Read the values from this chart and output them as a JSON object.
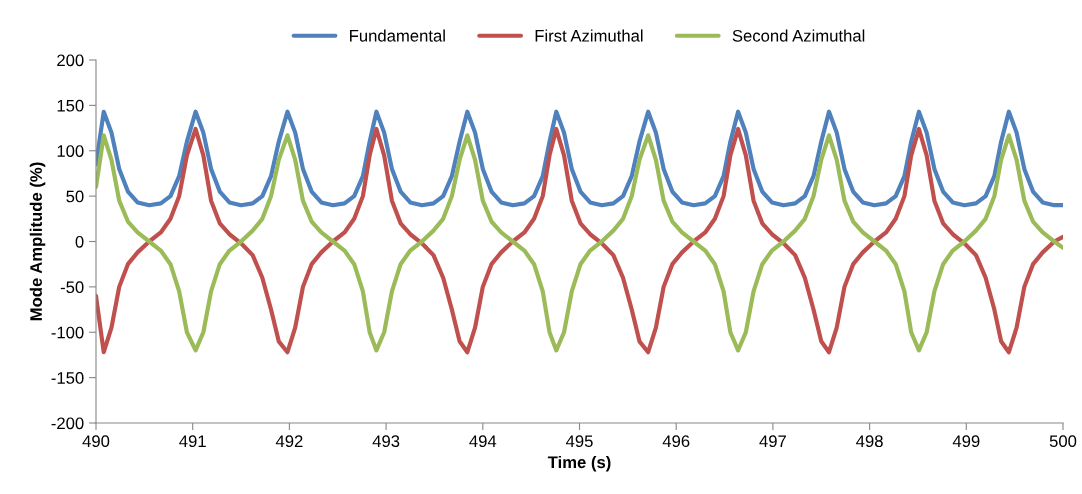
{
  "chart_data": {
    "type": "line",
    "xlabel": "Time (s)",
    "ylabel": "Mode Amplitude (%)",
    "x": [
      490.0,
      490.08,
      490.16,
      490.24,
      490.33,
      490.43,
      490.55,
      490.67,
      490.77,
      490.86,
      490.94,
      491.03,
      491.11,
      491.19,
      491.28,
      491.38,
      491.5,
      491.62,
      491.72,
      491.81,
      491.89,
      491.98,
      492.06,
      492.14,
      492.23,
      492.33,
      492.45,
      492.57,
      492.67,
      492.76,
      492.83,
      492.9,
      492.98,
      493.06,
      493.15,
      493.25,
      493.37,
      493.49,
      493.59,
      493.68,
      493.76,
      493.84,
      493.92,
      494.0,
      494.09,
      494.19,
      494.31,
      494.43,
      494.53,
      494.62,
      494.69,
      494.76,
      494.84,
      494.92,
      495.01,
      495.11,
      495.23,
      495.35,
      495.45,
      495.54,
      495.62,
      495.71,
      495.79,
      495.87,
      495.96,
      496.06,
      496.18,
      496.3,
      496.4,
      496.49,
      496.56,
      496.64,
      496.72,
      496.8,
      496.89,
      496.99,
      497.11,
      497.23,
      497.33,
      497.42,
      497.5,
      497.58,
      497.66,
      497.74,
      497.83,
      497.93,
      498.05,
      498.17,
      498.27,
      498.36,
      498.43,
      498.51,
      498.59,
      498.67,
      498.76,
      498.86,
      498.98,
      499.1,
      499.2,
      499.29,
      499.36,
      499.44,
      499.52,
      499.6,
      499.69,
      499.79,
      499.91,
      500.0
    ],
    "series": [
      {
        "name": "Fundamental",
        "color": "#4f81bd",
        "values": [
          85,
          143,
          120,
          80,
          55,
          43,
          40,
          42,
          50,
          72,
          110,
          143,
          120,
          80,
          55,
          43,
          40,
          42,
          50,
          72,
          110,
          143,
          120,
          80,
          55,
          43,
          40,
          42,
          50,
          72,
          110,
          143,
          120,
          80,
          55,
          43,
          40,
          42,
          50,
          72,
          110,
          143,
          120,
          80,
          55,
          43,
          40,
          42,
          50,
          72,
          110,
          143,
          120,
          80,
          55,
          43,
          40,
          42,
          50,
          72,
          110,
          143,
          120,
          80,
          55,
          43,
          40,
          42,
          50,
          72,
          110,
          143,
          120,
          80,
          55,
          43,
          40,
          42,
          50,
          72,
          110,
          143,
          120,
          80,
          55,
          43,
          40,
          42,
          50,
          72,
          110,
          143,
          120,
          80,
          55,
          43,
          40,
          42,
          50,
          72,
          110,
          143,
          120,
          80,
          55,
          43,
          40,
          40
        ]
      },
      {
        "name": "First Azimuthal",
        "color": "#c0504d",
        "values": [
          -60,
          -122,
          -95,
          -50,
          -25,
          -12,
          0,
          10,
          25,
          50,
          95,
          124,
          95,
          45,
          20,
          8,
          -2,
          -15,
          -40,
          -75,
          -110,
          -122,
          -95,
          -50,
          -25,
          -12,
          0,
          10,
          25,
          50,
          95,
          124,
          95,
          45,
          20,
          8,
          -2,
          -15,
          -40,
          -75,
          -110,
          -122,
          -95,
          -50,
          -25,
          -12,
          0,
          10,
          25,
          50,
          95,
          124,
          95,
          45,
          20,
          8,
          -2,
          -15,
          -40,
          -75,
          -110,
          -122,
          -95,
          -50,
          -25,
          -12,
          0,
          10,
          25,
          50,
          95,
          124,
          95,
          45,
          20,
          8,
          -2,
          -15,
          -40,
          -75,
          -110,
          -122,
          -95,
          -50,
          -25,
          -12,
          0,
          10,
          25,
          50,
          95,
          124,
          95,
          45,
          20,
          8,
          -2,
          -15,
          -40,
          -75,
          -110,
          -122,
          -95,
          -50,
          -25,
          -12,
          0,
          5
        ]
      },
      {
        "name": "Second Azimuthal",
        "color": "#9bbb59",
        "values": [
          60,
          117,
          90,
          45,
          22,
          10,
          0,
          -10,
          -25,
          -55,
          -100,
          -120,
          -100,
          -55,
          -25,
          -10,
          0,
          12,
          25,
          50,
          90,
          117,
          90,
          45,
          22,
          10,
          0,
          -10,
          -25,
          -55,
          -100,
          -120,
          -100,
          -55,
          -25,
          -10,
          0,
          12,
          25,
          50,
          90,
          117,
          90,
          45,
          22,
          10,
          0,
          -10,
          -25,
          -55,
          -100,
          -120,
          -100,
          -55,
          -25,
          -10,
          0,
          12,
          25,
          50,
          90,
          117,
          90,
          45,
          22,
          10,
          0,
          -10,
          -25,
          -55,
          -100,
          -120,
          -100,
          -55,
          -25,
          -10,
          0,
          12,
          25,
          50,
          90,
          117,
          90,
          45,
          22,
          10,
          0,
          -10,
          -25,
          -55,
          -100,
          -120,
          -100,
          -55,
          -25,
          -10,
          0,
          12,
          25,
          50,
          90,
          117,
          90,
          45,
          22,
          10,
          0,
          -7
        ]
      }
    ],
    "xlim": [
      490,
      500
    ],
    "xticks": [
      490,
      491,
      492,
      493,
      494,
      495,
      496,
      497,
      498,
      499,
      500
    ],
    "ylim": [
      -200,
      200
    ],
    "yticks": [
      -200,
      -150,
      -100,
      -50,
      0,
      50,
      100,
      150,
      200
    ],
    "legend": "top",
    "grid": false,
    "marker": "none",
    "line_style": "solid"
  }
}
